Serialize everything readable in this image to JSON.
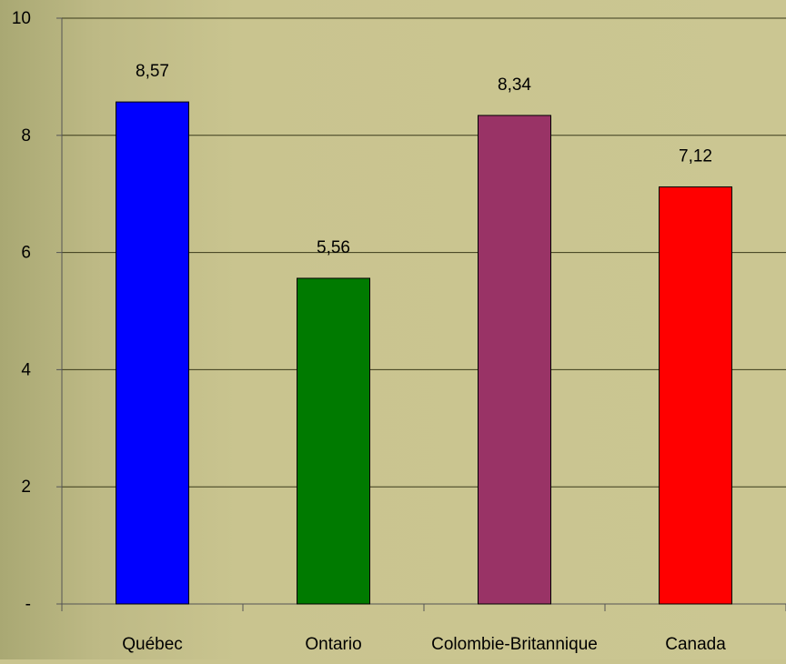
{
  "chart_data": {
    "type": "bar",
    "title": "",
    "xlabel": "",
    "ylabel": "",
    "categories": [
      "Québec",
      "Ontario",
      "Colombie-Britannique",
      "Canada"
    ],
    "values": [
      8.57,
      5.56,
      8.34,
      7.12
    ],
    "value_labels": [
      "8,57",
      "5,56",
      "8,34",
      "7,12"
    ],
    "bar_colors": [
      "#0000ff",
      "#007a00",
      "#993366",
      "#ff0000"
    ],
    "ylim": [
      0,
      10
    ],
    "y_ticks": [
      0,
      2,
      4,
      6,
      8,
      10
    ],
    "y_tick_labels": [
      "-",
      "2",
      "4",
      "6",
      "8",
      "10"
    ],
    "grid": true,
    "legend": "none",
    "colors": {
      "background": "#c9c48f",
      "background_left_texture": "#a8a66e",
      "gridline": "#3a3a1a",
      "axis": "#555555",
      "text": "#000000"
    }
  }
}
